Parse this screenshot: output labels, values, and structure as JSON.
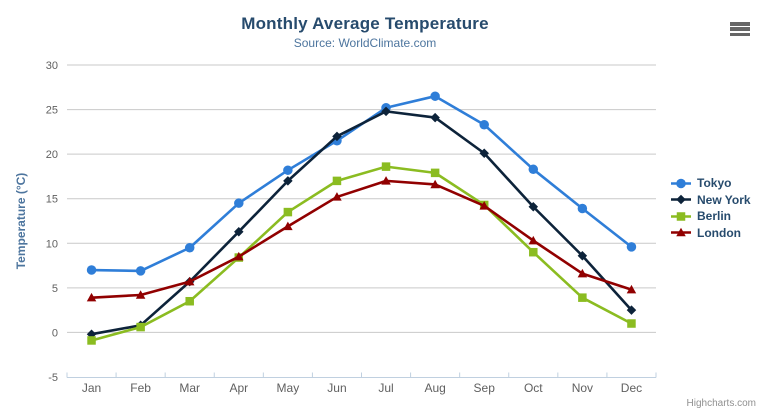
{
  "colors": {
    "title_text": "#274b6d",
    "subtitle_text": "#4d759e",
    "axis_title_text": "#4d759e",
    "tick_label_text": "#606060",
    "axis_line": "#c0d0e0",
    "grid_line": "#c9c9c9",
    "legend_text": "#274b6d",
    "credit_text": "#909090",
    "menu_icon": "#666666"
  },
  "credits": {
    "label": "Highcharts.com"
  },
  "chart_data": {
    "type": "line",
    "title": "Monthly Average Temperature",
    "subtitle": "Source: WorldClimate.com",
    "ylabel": "Temperature (°C)",
    "xlabel": "",
    "ylim": [
      -5,
      30
    ],
    "ytick_interval": 5,
    "grid": true,
    "legend_position": "right",
    "categories": [
      "Jan",
      "Feb",
      "Mar",
      "Apr",
      "May",
      "Jun",
      "Jul",
      "Aug",
      "Sep",
      "Oct",
      "Nov",
      "Dec"
    ],
    "series": [
      {
        "name": "Tokyo",
        "color": "#2f7ed8",
        "marker": "circle",
        "values": [
          7.0,
          6.9,
          9.5,
          14.5,
          18.2,
          21.5,
          25.2,
          26.5,
          23.3,
          18.3,
          13.9,
          9.6
        ]
      },
      {
        "name": "New York",
        "color": "#0d233a",
        "marker": "diamond",
        "values": [
          -0.2,
          0.8,
          5.7,
          11.3,
          17.0,
          22.0,
          24.8,
          24.1,
          20.1,
          14.1,
          8.6,
          2.5
        ]
      },
      {
        "name": "Berlin",
        "color": "#8bbc21",
        "marker": "square",
        "values": [
          -0.9,
          0.6,
          3.5,
          8.4,
          13.5,
          17.0,
          18.6,
          17.9,
          14.3,
          9.0,
          3.9,
          1.0
        ]
      },
      {
        "name": "London",
        "color": "#910000",
        "marker": "triangle",
        "values": [
          3.9,
          4.2,
          5.7,
          8.5,
          11.9,
          15.2,
          17.0,
          16.6,
          14.2,
          10.3,
          6.6,
          4.8
        ]
      }
    ]
  }
}
